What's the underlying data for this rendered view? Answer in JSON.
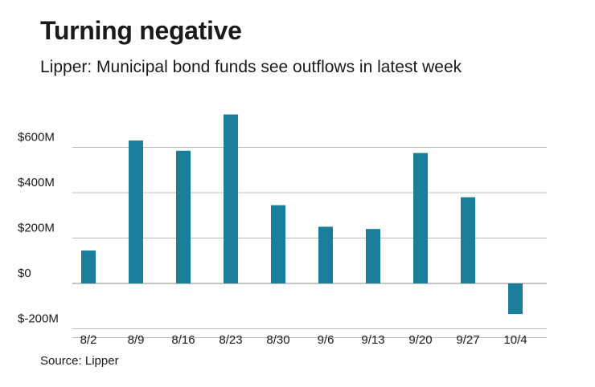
{
  "header": {
    "title": "Turning negative",
    "subtitle": "Lipper: Municipal bond funds see outflows in latest week"
  },
  "footer": {
    "source": "Source: Lipper"
  },
  "colors": {
    "bar": "#1a7e9a",
    "grid": "#bbbbbb",
    "zero": "#888888"
  },
  "chart_data": {
    "type": "bar",
    "title": "Turning negative",
    "subtitle": "Lipper: Municipal bond funds see outflows in latest week",
    "xlabel": "",
    "ylabel": "",
    "categories": [
      "8/2",
      "8/9",
      "8/16",
      "8/23",
      "8/30",
      "9/6",
      "9/13",
      "9/20",
      "9/27",
      "10/4"
    ],
    "values": [
      145,
      630,
      585,
      745,
      345,
      250,
      240,
      575,
      380,
      -135
    ],
    "ylim": [
      -200,
      750
    ],
    "yticks": [
      -200,
      0,
      200,
      400,
      600
    ],
    "ytick_labels": [
      "$-200M",
      "$0",
      "$200M",
      "$400M",
      "$600M"
    ],
    "grid": true,
    "legend": "none"
  }
}
